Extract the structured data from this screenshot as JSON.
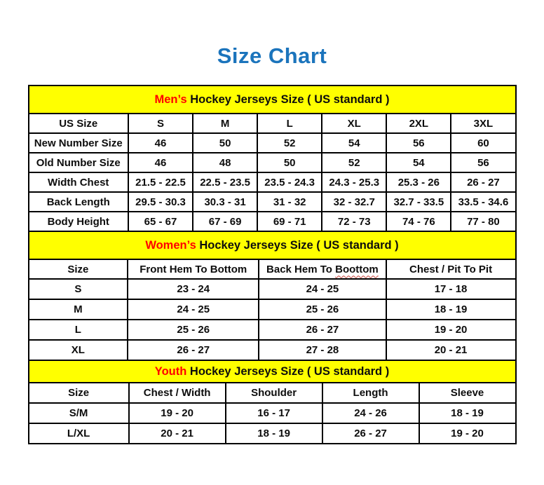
{
  "page": {
    "title": "Size Chart"
  },
  "colors": {
    "title_blue": "#1B74BC",
    "accent_red": "#FF0000",
    "band_yellow": "#FFFF00",
    "border_black": "#000000",
    "squiggle_red": "#C9473F"
  },
  "chart_data": [
    {
      "type": "table",
      "title_highlight": "Men’s",
      "title_rest": "Hockey Jerseys Size ( US standard )",
      "columns": [
        "US Size",
        "S",
        "M",
        "L",
        "XL",
        "2XL",
        "3XL"
      ],
      "rows": [
        {
          "label": "New Number Size",
          "values": [
            "46",
            "50",
            "52",
            "54",
            "56",
            "60"
          ]
        },
        {
          "label": "Old Number Size",
          "values": [
            "46",
            "48",
            "50",
            "52",
            "54",
            "56"
          ]
        },
        {
          "label": "Width Chest",
          "values": [
            "21.5 - 22.5",
            "22.5 - 23.5",
            "23.5 - 24.3",
            "24.3 - 25.3",
            "25.3 - 26",
            "26 - 27"
          ]
        },
        {
          "label": "Back Length",
          "values": [
            "29.5 - 30.3",
            "30.3 - 31",
            "31 - 32",
            "32 - 32.7",
            "32.7 - 33.5",
            "33.5 - 34.6"
          ]
        },
        {
          "label": "Body Height",
          "values": [
            "65 - 67",
            "67 - 69",
            "69 - 71",
            "72 - 73",
            "74 - 76",
            "77 - 80"
          ]
        }
      ]
    },
    {
      "type": "table",
      "title_highlight": "Women’s",
      "title_rest": "Hockey Jerseys Size ( US standard )",
      "columns": [
        "Size",
        "Front Hem To Bottom",
        "Back Hem To Boottom",
        "Chest / Pit To Pit"
      ],
      "back_header_prefix": "Back Hem To",
      "back_header_misspelled": "Boottom",
      "rows": [
        {
          "label": "S",
          "values": [
            "23 - 24",
            "24 - 25",
            "17 - 18"
          ]
        },
        {
          "label": "M",
          "values": [
            "24 - 25",
            "25 - 26",
            "18 - 19"
          ]
        },
        {
          "label": "L",
          "values": [
            "25 - 26",
            "26 - 27",
            "19 - 20"
          ]
        },
        {
          "label": "XL",
          "values": [
            "26 - 27",
            "27 - 28",
            "20 - 21"
          ]
        }
      ]
    },
    {
      "type": "table",
      "title_highlight": "Youth",
      "title_rest": "Hockey Jerseys Size ( US standard )",
      "columns": [
        "Size",
        "Chest / Width",
        "Shoulder",
        "Length",
        "Sleeve"
      ],
      "rows": [
        {
          "label": "S/M",
          "values": [
            "19 - 20",
            "16 - 17",
            "24 - 26",
            "18 - 19"
          ]
        },
        {
          "label": "L/XL",
          "values": [
            "20 - 21",
            "18 - 19",
            "26 - 27",
            "19 - 20"
          ]
        }
      ]
    }
  ]
}
